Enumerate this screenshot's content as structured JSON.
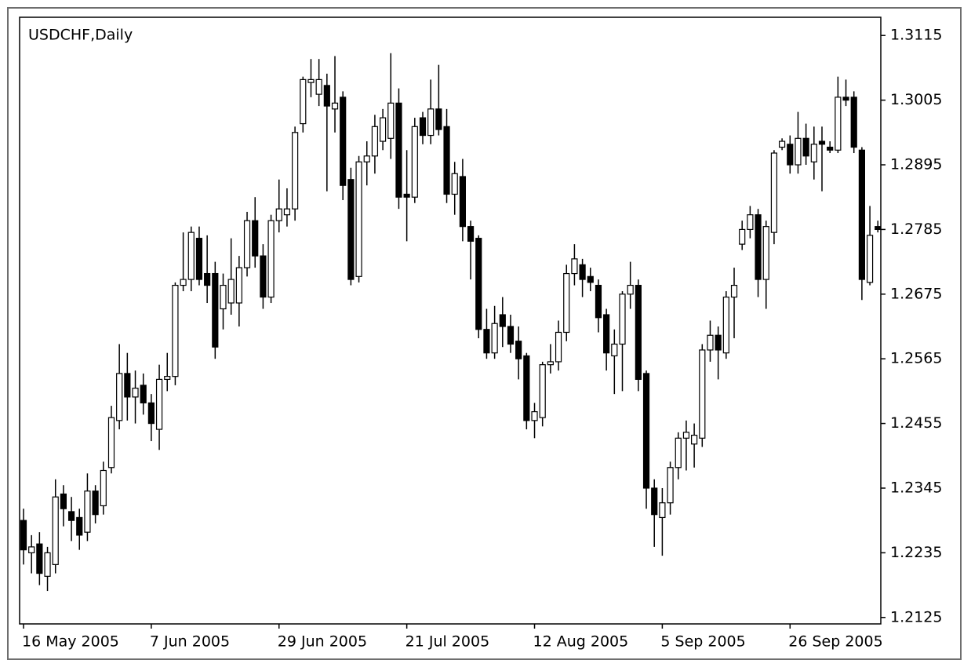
{
  "chart_data": {
    "type": "candlestick",
    "title": "USDCHF,Daily",
    "categories": [
      "16 May 2005",
      null,
      null,
      null,
      null,
      null,
      null,
      null,
      null,
      null,
      null,
      null,
      null,
      null,
      null,
      null,
      "7 Jun 2005",
      null,
      null,
      null,
      null,
      null,
      null,
      null,
      null,
      null,
      null,
      null,
      null,
      null,
      null,
      null,
      "29 Jun 2005",
      null,
      null,
      null,
      null,
      null,
      null,
      null,
      null,
      null,
      null,
      null,
      null,
      null,
      null,
      null,
      "21 Jul 2005",
      null,
      null,
      null,
      null,
      null,
      null,
      null,
      null,
      null,
      null,
      null,
      null,
      null,
      null,
      null,
      "12 Aug 2005",
      null,
      null,
      null,
      null,
      null,
      null,
      null,
      null,
      null,
      null,
      null,
      null,
      null,
      null,
      null,
      "5 Sep 2005",
      null,
      null,
      null,
      null,
      null,
      null,
      null,
      null,
      null,
      null,
      null,
      null,
      null,
      null,
      null,
      "26 Sep 2005",
      null,
      null,
      null,
      null,
      null,
      null,
      null,
      null,
      null,
      null,
      null
    ],
    "open": [
      1.229,
      1.2235,
      1.225,
      1.2195,
      1.2215,
      1.2335,
      1.2305,
      1.2295,
      1.227,
      1.234,
      1.2315,
      1.238,
      1.246,
      1.254,
      1.25,
      1.252,
      1.249,
      1.2445,
      1.253,
      1.2535,
      1.269,
      1.27,
      1.277,
      1.271,
      1.271,
      1.265,
      1.266,
      1.266,
      1.272,
      1.28,
      1.274,
      1.267,
      1.28,
      1.281,
      1.282,
      1.2965,
      1.3035,
      1.3015,
      1.303,
      1.299,
      1.301,
      1.287,
      1.2705,
      1.29,
      1.291,
      1.2935,
      1.294,
      1.3,
      1.2845,
      1.284,
      1.2975,
      1.2945,
      1.299,
      1.296,
      1.2845,
      1.2875,
      1.279,
      1.277,
      1.2615,
      1.2575,
      1.264,
      1.262,
      1.2595,
      1.257,
      1.246,
      1.2465,
      1.2555,
      1.256,
      1.261,
      1.271,
      1.2725,
      1.2705,
      1.269,
      1.264,
      1.257,
      1.259,
      1.2675,
      1.269,
      1.254,
      1.2345,
      1.2295,
      1.232,
      1.238,
      1.243,
      1.242,
      1.243,
      1.258,
      1.2605,
      1.2575,
      1.267,
      1.276,
      1.2785,
      1.281,
      1.27,
      1.278,
      1.2925,
      1.293,
      1.2895,
      1.294,
      1.29,
      1.2935,
      1.2925,
      1.292,
      1.301,
      1.301,
      1.292,
      1.2695,
      1.279
    ],
    "high": [
      1.231,
      1.2265,
      1.227,
      1.2245,
      1.236,
      1.235,
      1.233,
      1.231,
      1.237,
      1.235,
      1.239,
      1.2485,
      1.259,
      1.2575,
      1.2545,
      1.254,
      1.2505,
      1.2555,
      1.2575,
      1.2695,
      1.278,
      1.279,
      1.279,
      1.2775,
      1.273,
      1.271,
      1.277,
      1.274,
      1.2815,
      1.284,
      1.276,
      1.281,
      1.287,
      1.2855,
      1.296,
      1.3045,
      1.3075,
      1.3075,
      1.305,
      1.308,
      1.302,
      1.289,
      1.291,
      1.2935,
      1.298,
      1.299,
      1.3085,
      1.3025,
      1.292,
      1.2975,
      1.2985,
      1.304,
      1.3065,
      1.299,
      1.29,
      1.2905,
      1.28,
      1.2775,
      1.265,
      1.2655,
      1.267,
      1.264,
      1.262,
      1.2575,
      1.249,
      1.256,
      1.259,
      1.263,
      1.2725,
      1.276,
      1.2735,
      1.272,
      1.27,
      1.265,
      1.2615,
      1.268,
      1.273,
      1.27,
      1.2545,
      1.236,
      1.2345,
      1.239,
      1.244,
      1.246,
      1.2455,
      1.259,
      1.263,
      1.262,
      1.268,
      1.272,
      1.28,
      1.2825,
      1.282,
      1.28,
      1.292,
      1.294,
      1.2945,
      1.2985,
      1.2965,
      1.296,
      1.296,
      1.2935,
      1.3045,
      1.304,
      1.302,
      1.2925,
      1.2825,
      1.28
    ],
    "low": [
      1.2215,
      1.22,
      1.218,
      1.217,
      1.22,
      1.228,
      1.2255,
      1.224,
      1.2255,
      1.2285,
      1.23,
      1.237,
      1.2445,
      1.246,
      1.2455,
      1.247,
      1.2425,
      1.241,
      1.251,
      1.252,
      1.268,
      1.268,
      1.269,
      1.266,
      1.2565,
      1.2615,
      1.264,
      1.262,
      1.2705,
      1.272,
      1.265,
      1.266,
      1.278,
      1.279,
      1.28,
      1.295,
      1.301,
      1.2995,
      1.285,
      1.295,
      1.2835,
      1.269,
      1.2695,
      1.286,
      1.288,
      1.292,
      1.2905,
      1.282,
      1.2765,
      1.283,
      1.293,
      1.293,
      1.2945,
      1.283,
      1.281,
      1.2765,
      1.27,
      1.26,
      1.2565,
      1.2565,
      1.2585,
      1.2575,
      1.253,
      1.2445,
      1.243,
      1.245,
      1.254,
      1.2545,
      1.2595,
      1.269,
      1.267,
      1.268,
      1.261,
      1.2545,
      1.2505,
      1.251,
      1.265,
      1.251,
      1.231,
      1.2245,
      1.223,
      1.23,
      1.236,
      1.2375,
      1.238,
      1.2415,
      1.256,
      1.253,
      1.2565,
      1.26,
      1.275,
      1.277,
      1.267,
      1.265,
      1.276,
      1.292,
      1.288,
      1.288,
      1.2895,
      1.287,
      1.285,
      1.2915,
      1.2915,
      1.2995,
      1.2915,
      1.2665,
      1.269,
      1.278
    ],
    "close": [
      1.224,
      1.2245,
      1.22,
      1.2235,
      1.233,
      1.231,
      1.229,
      1.2265,
      1.234,
      1.23,
      1.2375,
      1.2465,
      1.254,
      1.25,
      1.2515,
      1.249,
      1.2455,
      1.253,
      1.2535,
      1.269,
      1.27,
      1.278,
      1.27,
      1.269,
      1.2585,
      1.269,
      1.27,
      1.272,
      1.28,
      1.274,
      1.267,
      1.28,
      1.282,
      1.282,
      1.295,
      1.304,
      1.304,
      1.304,
      1.2995,
      1.3,
      1.286,
      1.27,
      1.29,
      1.291,
      1.296,
      1.2975,
      1.3,
      1.284,
      1.284,
      1.296,
      1.2945,
      1.299,
      1.2955,
      1.2845,
      1.288,
      1.279,
      1.2765,
      1.2615,
      1.2575,
      1.2625,
      1.262,
      1.259,
      1.2565,
      1.246,
      1.2475,
      1.2555,
      1.256,
      1.261,
      1.271,
      1.2735,
      1.27,
      1.2695,
      1.2635,
      1.2575,
      1.259,
      1.2675,
      1.269,
      1.253,
      1.2345,
      1.23,
      1.232,
      1.238,
      1.243,
      1.244,
      1.2435,
      1.258,
      1.2605,
      1.258,
      1.267,
      1.269,
      1.2785,
      1.281,
      1.27,
      1.279,
      1.2915,
      1.2935,
      1.2895,
      1.294,
      1.291,
      1.293,
      1.293,
      1.292,
      1.301,
      1.3005,
      1.2925,
      1.27,
      1.2775,
      1.2785
    ],
    "up_color": "#ffffff",
    "down_color": "#000000",
    "wick_color": "#000000",
    "ylim": [
      1.2114,
      1.3146
    ],
    "yticks": [
      1.2125,
      1.2235,
      1.2345,
      1.2455,
      1.2565,
      1.2675,
      1.2785,
      1.2895,
      1.3005,
      1.3115
    ],
    "grid": false
  }
}
